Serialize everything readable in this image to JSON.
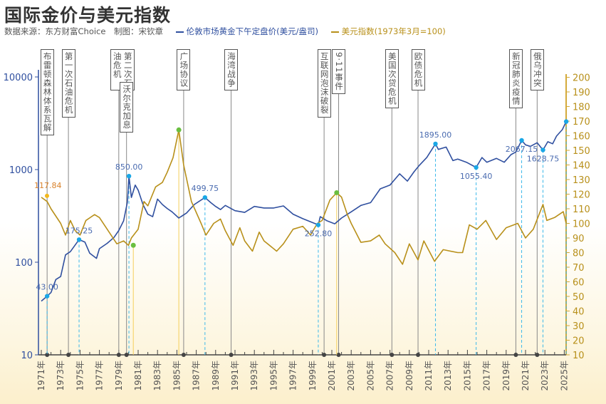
{
  "header": {
    "title": "国际金价与美元指数",
    "source": "数据来源：东方财富Choice　制图：宋钦章"
  },
  "chart_data": {
    "type": "line",
    "title": "国际金价与美元指数",
    "left_axis": {
      "scale": "log",
      "ticks": [
        "10",
        "100",
        "1000",
        "10000"
      ],
      "range": [
        10,
        10000
      ],
      "color": "#2f4f9f"
    },
    "right_axis": {
      "scale": "linear",
      "range": [
        10,
        200
      ],
      "ticks": [
        "10",
        "20",
        "30",
        "40",
        "50",
        "60",
        "70",
        "80",
        "90",
        "100",
        "110",
        "120",
        "130",
        "140",
        "150",
        "160",
        "170",
        "180",
        "190",
        "200"
      ],
      "color": "#b8901a"
    },
    "x_ticks": [
      "1971年",
      "1973年",
      "1975年",
      "1977年",
      "1979年",
      "1981年",
      "1983年",
      "1985年",
      "1987年",
      "1989年",
      "1991年",
      "1993年",
      "1995年",
      "1997年",
      "1999年",
      "2001年",
      "2003年",
      "2005年",
      "2007年",
      "2009年",
      "2011年",
      "2013年",
      "2015年",
      "2017年",
      "2019年",
      "2021年",
      "2023年",
      "2025年"
    ],
    "x_range": [
      1971,
      2025.3
    ],
    "series": [
      {
        "name": "伦敦市场黄金下午定盘价(美元/盎司)",
        "axis": "left",
        "color": "#2f4f9f",
        "points": [
          [
            1971,
            38
          ],
          [
            1971.6,
            43
          ],
          [
            1972,
            47
          ],
          [
            1972.5,
            65
          ],
          [
            1973,
            70
          ],
          [
            1973.5,
            120
          ],
          [
            1974,
            130
          ],
          [
            1974.9,
            175.25
          ],
          [
            1975.5,
            165
          ],
          [
            1976,
            125
          ],
          [
            1976.7,
            110
          ],
          [
            1977,
            140
          ],
          [
            1977.8,
            160
          ],
          [
            1978.5,
            185
          ],
          [
            1979,
            220
          ],
          [
            1979.5,
            280
          ],
          [
            1979.9,
            450
          ],
          [
            1980.05,
            850
          ],
          [
            1980.3,
            500
          ],
          [
            1980.7,
            680
          ],
          [
            1981,
            600
          ],
          [
            1981.5,
            420
          ],
          [
            1982,
            330
          ],
          [
            1982.5,
            310
          ],
          [
            1983,
            480
          ],
          [
            1983.5,
            420
          ],
          [
            1984,
            380
          ],
          [
            1984.5,
            350
          ],
          [
            1985.2,
            300
          ],
          [
            1986,
            340
          ],
          [
            1986.8,
            420
          ],
          [
            1987.9,
            499.75
          ],
          [
            1988.5,
            440
          ],
          [
            1989,
            400
          ],
          [
            1989.5,
            370
          ],
          [
            1990,
            410
          ],
          [
            1991,
            360
          ],
          [
            1992,
            345
          ],
          [
            1993,
            400
          ],
          [
            1994,
            385
          ],
          [
            1995,
            385
          ],
          [
            1996,
            405
          ],
          [
            1997,
            330
          ],
          [
            1998,
            295
          ],
          [
            1999.6,
            252.8
          ],
          [
            1999.8,
            310
          ],
          [
            2000.5,
            280
          ],
          [
            2001.3,
            260
          ],
          [
            2002,
            300
          ],
          [
            2003,
            350
          ],
          [
            2004,
            410
          ],
          [
            2005,
            440
          ],
          [
            2006,
            620
          ],
          [
            2007,
            680
          ],
          [
            2008,
            900
          ],
          [
            2008.8,
            750
          ],
          [
            2009.5,
            950
          ],
          [
            2010,
            1100
          ],
          [
            2010.8,
            1350
          ],
          [
            2011.7,
            1895
          ],
          [
            2012,
            1650
          ],
          [
            2012.8,
            1750
          ],
          [
            2013.5,
            1250
          ],
          [
            2014,
            1300
          ],
          [
            2014.9,
            1200
          ],
          [
            2015.9,
            1055.4
          ],
          [
            2016.5,
            1350
          ],
          [
            2017,
            1200
          ],
          [
            2018,
            1320
          ],
          [
            2018.8,
            1200
          ],
          [
            2019.5,
            1450
          ],
          [
            2020,
            1550
          ],
          [
            2020.6,
            2067.15
          ],
          [
            2021,
            1850
          ],
          [
            2021.5,
            1780
          ],
          [
            2022.2,
            1950
          ],
          [
            2022.8,
            1628.75
          ],
          [
            2023.3,
            2000
          ],
          [
            2023.8,
            1900
          ],
          [
            2024.2,
            2300
          ],
          [
            2024.8,
            2700
          ],
          [
            2025.2,
            3300
          ]
        ]
      },
      {
        "name": "美元指数(1973年3月=100)",
        "axis": "right",
        "color": "#b8901a",
        "points": [
          [
            1971,
            117.84
          ],
          [
            1971.6,
            115
          ],
          [
            1972,
            110
          ],
          [
            1973,
            100
          ],
          [
            1973.5,
            92
          ],
          [
            1974,
            102
          ],
          [
            1974.5,
            95
          ],
          [
            1975,
            92
          ],
          [
            1975.6,
            102
          ],
          [
            1976.5,
            106
          ],
          [
            1977,
            104
          ],
          [
            1977.8,
            96
          ],
          [
            1978.8,
            86
          ],
          [
            1979.5,
            88
          ],
          [
            1980,
            85
          ],
          [
            1980.3,
            90
          ],
          [
            1981,
            96
          ],
          [
            1981.6,
            115
          ],
          [
            1982,
            112
          ],
          [
            1982.8,
            125
          ],
          [
            1983.5,
            128
          ],
          [
            1984,
            135
          ],
          [
            1984.6,
            145
          ],
          [
            1985.2,
            164
          ],
          [
            1985.7,
            140
          ],
          [
            1986.5,
            115
          ],
          [
            1987.5,
            100
          ],
          [
            1988,
            92
          ],
          [
            1988.8,
            100
          ],
          [
            1989.5,
            103
          ],
          [
            1990,
            95
          ],
          [
            1990.8,
            85
          ],
          [
            1991.5,
            97
          ],
          [
            1992,
            88
          ],
          [
            1992.8,
            81
          ],
          [
            1993.5,
            94
          ],
          [
            1994,
            88
          ],
          [
            1995.3,
            81
          ],
          [
            1996,
            86
          ],
          [
            1997,
            96
          ],
          [
            1998,
            98
          ],
          [
            1998.8,
            92
          ],
          [
            1999.5,
            100
          ],
          [
            2000,
            102
          ],
          [
            2000.8,
            116
          ],
          [
            2001.5,
            121
          ],
          [
            2002,
            118
          ],
          [
            2002.6,
            106
          ],
          [
            2003,
            100
          ],
          [
            2004,
            87
          ],
          [
            2005,
            88
          ],
          [
            2005.9,
            92
          ],
          [
            2006.5,
            86
          ],
          [
            2007.5,
            80
          ],
          [
            2008.3,
            72
          ],
          [
            2009,
            86
          ],
          [
            2009.9,
            75
          ],
          [
            2010.5,
            88
          ],
          [
            2011.6,
            74
          ],
          [
            2012.5,
            82
          ],
          [
            2014,
            80
          ],
          [
            2014.5,
            80
          ],
          [
            2015.2,
            99
          ],
          [
            2016,
            96
          ],
          [
            2016.9,
            102
          ],
          [
            2018,
            89
          ],
          [
            2019,
            97
          ],
          [
            2020.2,
            100
          ],
          [
            2021,
            90
          ],
          [
            2021.8,
            96
          ],
          [
            2022.8,
            113
          ],
          [
            2023.2,
            102
          ],
          [
            2024,
            104
          ],
          [
            2024.9,
            108
          ],
          [
            2025.2,
            100
          ]
        ]
      }
    ],
    "gold_annotations": [
      {
        "year": 1971.6,
        "value": 43,
        "label": "43.00"
      },
      {
        "year": 1974.9,
        "value": 175.25,
        "label": "175.25"
      },
      {
        "year": 1980.05,
        "value": 850,
        "label": "850.00"
      },
      {
        "year": 1987.9,
        "value": 499.75,
        "label": "499.75"
      },
      {
        "year": 1999.6,
        "value": 252.8,
        "label": "252.80"
      },
      {
        "year": 2011.7,
        "value": 1895,
        "label": "1895.00"
      },
      {
        "year": 2015.9,
        "value": 1055.4,
        "label": "1055.40"
      },
      {
        "year": 2020.6,
        "value": 2067.15,
        "label": "2067.15"
      },
      {
        "year": 2022.8,
        "value": 1628.75,
        "label": "1628.75"
      },
      {
        "year": 2025.2,
        "value": 3300,
        "label": ""
      }
    ],
    "dollar_start_label": {
      "year": 1971,
      "value": 117.84,
      "label": "117.84"
    },
    "dollar_markers": [
      {
        "year": 1980.5,
        "value": 85
      },
      {
        "year": 1985.2,
        "value": 164
      },
      {
        "year": 2001.5,
        "value": 121
      }
    ],
    "events": [
      {
        "year": 1971.6,
        "label": "布雷顿森林体系瓦解"
      },
      {
        "year": 1973.8,
        "label": "第一次石油危机"
      },
      {
        "year": 1979.0,
        "label": "第二次石油危机"
      },
      {
        "year": 1979.8,
        "label": "沃尔克加息"
      },
      {
        "year": 1985.7,
        "label": "广场协议"
      },
      {
        "year": 1990.6,
        "label": "海湾战争"
      },
      {
        "year": 2000.2,
        "label": "互联网泡沫破裂"
      },
      {
        "year": 2001.7,
        "label": "9·11事件"
      },
      {
        "year": 2007.2,
        "label": "美国次贷危机"
      },
      {
        "year": 2009.9,
        "label": "欧债危机"
      },
      {
        "year": 2020.0,
        "label": "新冠肺炎疫情"
      },
      {
        "year": 2022.2,
        "label": "俄乌冲突"
      }
    ],
    "grid": false,
    "legend": "top"
  }
}
